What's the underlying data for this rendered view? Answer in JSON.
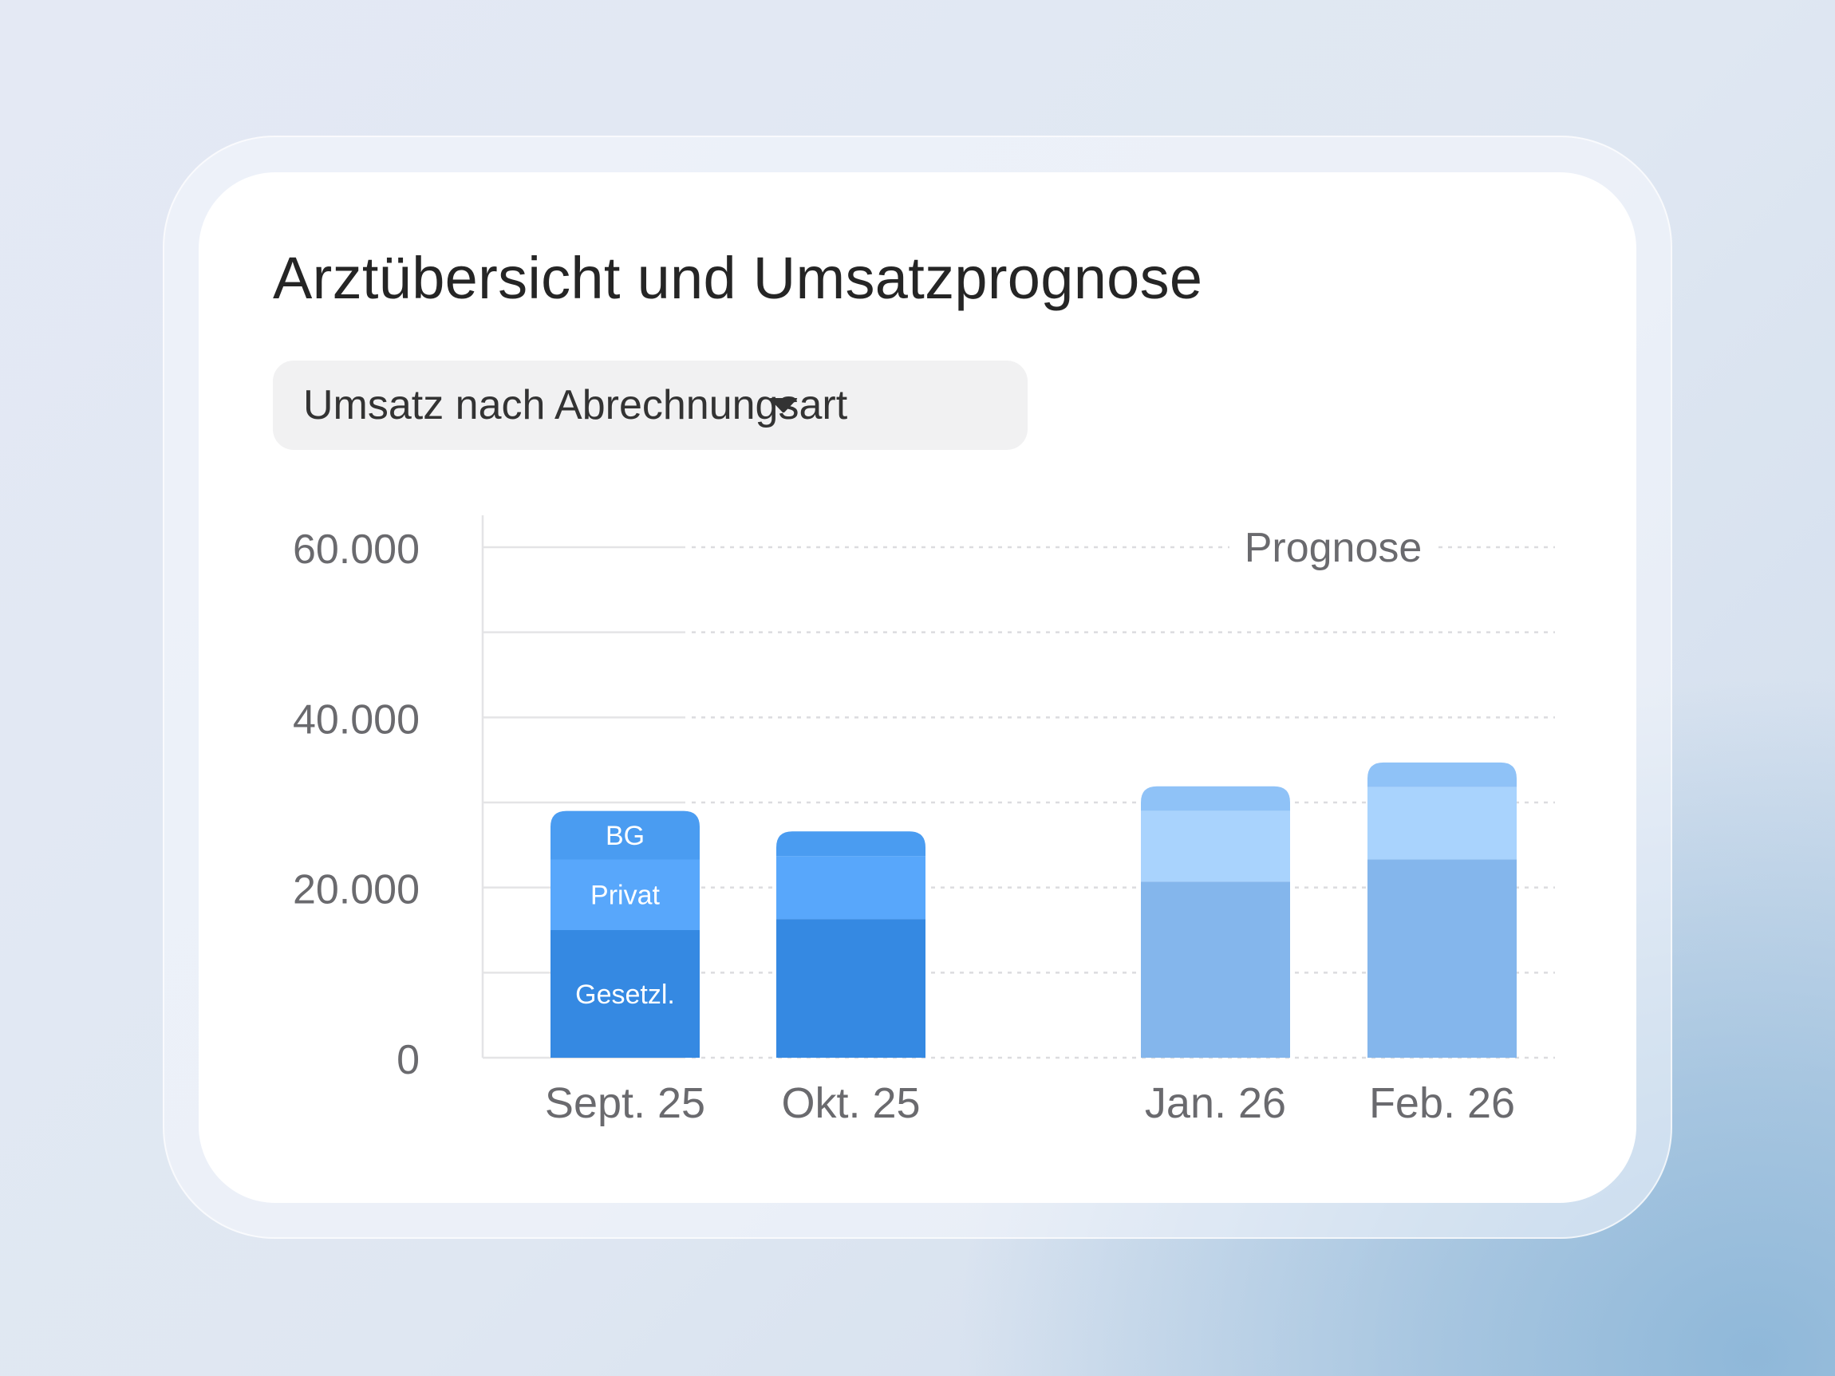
{
  "title": "Arztübersicht und Umsatzprognose",
  "dropdown": {
    "selected": "Umsatz nach Abrechnungsart",
    "icon": "caret-down-icon"
  },
  "colors": {
    "actual_gesetzl": "#3589e2",
    "actual_privat": "#58a7fb",
    "actual_bg": "#4a9cf1",
    "forecast_gesetzl": "#84b6ec",
    "forecast_privat": "#a9d3fd",
    "forecast_bg": "#8fc2f7"
  },
  "chart_data": {
    "type": "bar",
    "stacked": true,
    "categories": [
      "Sept. 25",
      "Okt. 25",
      "Jan. 26",
      "Feb. 26"
    ],
    "forecast_categories": [
      "Jan. 26",
      "Feb. 26"
    ],
    "forecast_label": "Prognose",
    "series": [
      {
        "name": "Gesetzl.",
        "values": [
          15000,
          16300,
          20700,
          23300
        ]
      },
      {
        "name": "Privat",
        "values": [
          8300,
          7400,
          8300,
          8500
        ]
      },
      {
        "name": "BG",
        "values": [
          5700,
          2900,
          2900,
          2900
        ]
      }
    ],
    "ylim": [
      0,
      60000
    ],
    "yticks": [
      {
        "value": 0,
        "label": "0"
      },
      {
        "value": 20000,
        "label": "20.000"
      },
      {
        "value": 40000,
        "label": "40.000"
      },
      {
        "value": 60000,
        "label": "60.000"
      }
    ],
    "gridlines": [
      0,
      10000,
      20000,
      30000,
      40000,
      50000,
      60000
    ],
    "grid": true,
    "title": "",
    "xlabel": "",
    "ylabel": ""
  }
}
